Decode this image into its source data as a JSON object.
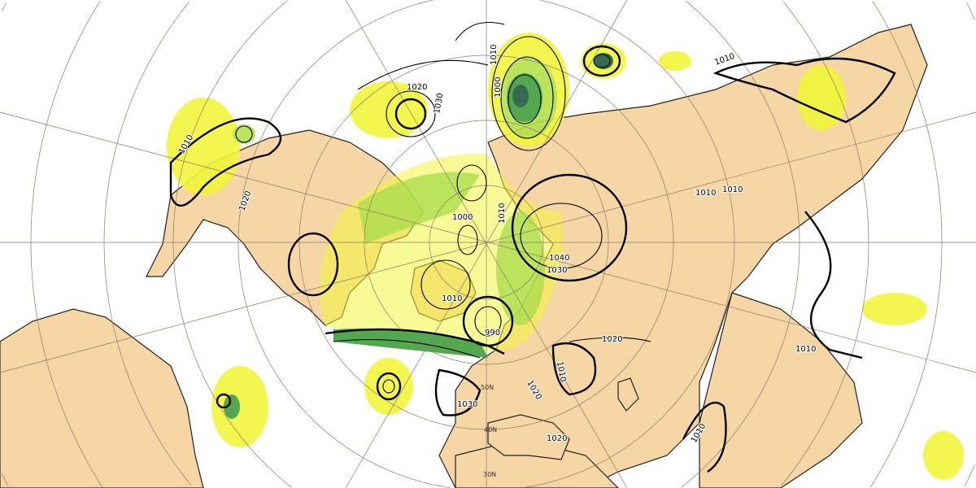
{
  "map": {
    "projection": "north polar stereographic",
    "colors": {
      "ocean": "#ffffff",
      "land": "#f6d6a4",
      "precip_light": "#f2f53a",
      "precip_medium": "#b5e04a",
      "precip_heavy": "#3f9e3c",
      "precip_extreme": "#1f5a3e",
      "isobar": "#000000",
      "graticule": "#8a7a6a"
    },
    "isobar_labels": [
      "1010",
      "1020",
      "1030",
      "1000",
      "1010",
      "1010",
      "1020",
      "1010",
      "1040",
      "1030",
      "990",
      "1010",
      "1020",
      "1030",
      "1020",
      "1010",
      "1010",
      "1010",
      "1020",
      "1010",
      "1000",
      "1010"
    ],
    "latitude_labels": [
      "50N",
      "40N",
      "30N"
    ]
  }
}
